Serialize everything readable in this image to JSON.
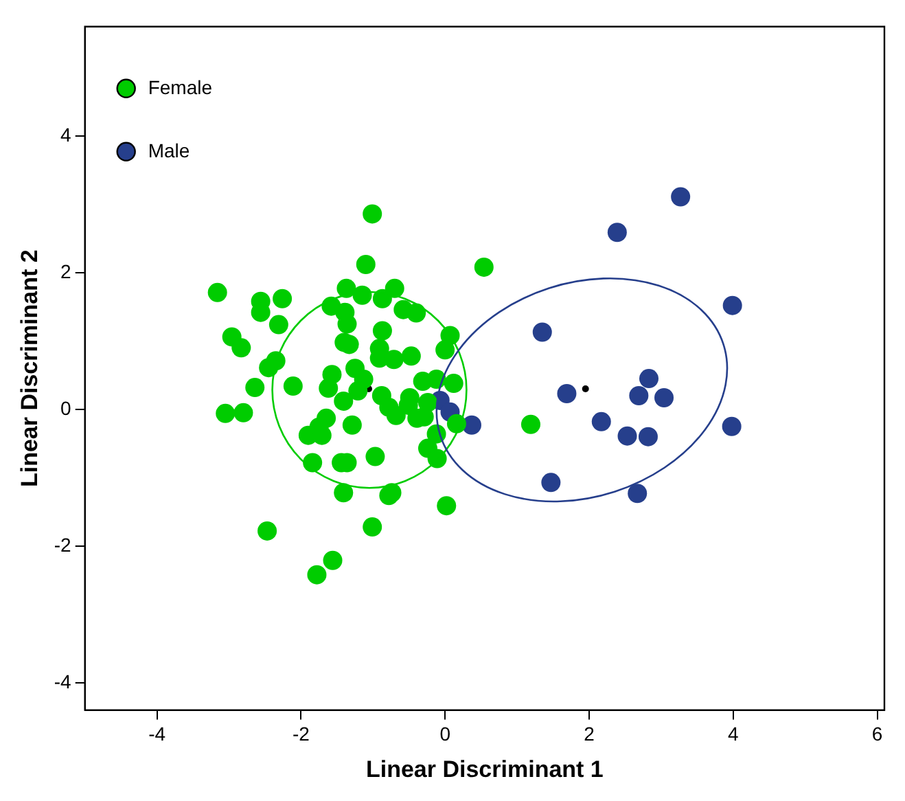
{
  "chart_data": {
    "type": "scatter",
    "xlabel": "Linear Discriminant 1",
    "ylabel": "Linear Discriminant 2",
    "xlim": [
      -5,
      6.1
    ],
    "ylim": [
      -4.4,
      5.6
    ],
    "xticks": [
      -4,
      -2,
      0,
      2,
      4,
      6
    ],
    "yticks": [
      -4,
      -2,
      0,
      2,
      4
    ],
    "legend": "top left",
    "marker": "circle",
    "series": [
      {
        "name": "Female",
        "color": "#00cc00",
        "x": [
          -1.01,
          -1.1,
          0.54,
          -3.16,
          -2.56,
          -2.56,
          -2.26,
          -1.37,
          -1.15,
          -0.7,
          -0.87,
          -1.58,
          -1.39,
          -1.36,
          -2.31,
          -0.58,
          -0.4,
          -0.87,
          0.07,
          -2.96,
          -2.83,
          -1.4,
          -1.33,
          -0.91,
          0.0,
          -0.91,
          -0.71,
          -0.47,
          -2.35,
          -2.45,
          -1.25,
          -1.57,
          -1.13,
          -1.62,
          -2.64,
          -2.11,
          -0.31,
          -0.12,
          0.12,
          -1.21,
          -0.88,
          -1.41,
          -0.49,
          -0.78,
          -0.24,
          -0.51,
          -0.68,
          -0.39,
          -0.29,
          -3.05,
          -2.8,
          -1.65,
          -1.75,
          -1.9,
          -1.71,
          -1.29,
          0.16,
          -0.12,
          -0.24,
          -0.11,
          1.19,
          -1.84,
          -1.44,
          -1.36,
          -0.97,
          -1.41,
          -0.78,
          -0.74,
          0.02,
          -1.01,
          -2.47,
          -1.56,
          -1.78
        ],
        "values": [
          2.86,
          2.12,
          2.08,
          1.71,
          1.58,
          1.42,
          1.62,
          1.77,
          1.67,
          1.77,
          1.62,
          1.51,
          1.42,
          1.25,
          1.24,
          1.46,
          1.41,
          1.15,
          1.08,
          1.06,
          0.9,
          0.98,
          0.95,
          0.89,
          0.87,
          0.75,
          0.73,
          0.78,
          0.71,
          0.61,
          0.6,
          0.51,
          0.44,
          0.31,
          0.32,
          0.34,
          0.41,
          0.44,
          0.38,
          0.27,
          0.2,
          0.12,
          0.17,
          0.03,
          0.1,
          0.06,
          -0.09,
          -0.13,
          -0.11,
          -0.06,
          -0.05,
          -0.13,
          -0.26,
          -0.38,
          -0.38,
          -0.23,
          -0.21,
          -0.36,
          -0.57,
          -0.72,
          -0.22,
          -0.78,
          -0.78,
          -0.78,
          -0.69,
          -1.22,
          -1.26,
          -1.22,
          -1.41,
          -1.72,
          -1.78,
          -2.21,
          -2.42
        ]
      },
      {
        "name": "Male",
        "color": "#263f8c",
        "x": [
          3.27,
          2.39,
          3.99,
          1.35,
          1.69,
          2.83,
          2.69,
          3.04,
          2.17,
          2.53,
          2.82,
          3.98,
          0.37,
          -0.07,
          0.07,
          1.47,
          2.67
        ],
        "values": [
          3.11,
          2.59,
          1.52,
          1.13,
          0.23,
          0.45,
          0.2,
          0.17,
          -0.18,
          -0.39,
          -0.4,
          -0.25,
          -0.23,
          0.13,
          -0.04,
          -1.07,
          -1.23
        ]
      },
      {
        "color": "#000000",
        "x": [
          -1.06,
          1.95
        ],
        "values": [
          0.3,
          0.3
        ]
      }
    ]
  }
}
